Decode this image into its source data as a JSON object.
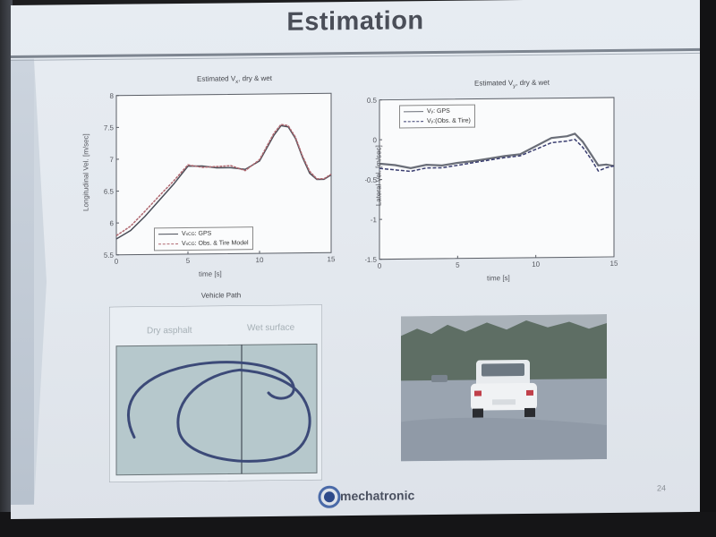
{
  "slide": {
    "title": "Estimation",
    "page_number": "24",
    "logo_text": "mechatronic"
  },
  "plot_left": {
    "title_pre": "Estimated V",
    "title_sub": "x",
    "title_post": ", dry & wet",
    "xlabel": "time [s]",
    "ylabel": "Longitudinal Vel. [m/sec]",
    "xticks": [
      "0",
      "5",
      "10",
      "15"
    ],
    "yticks": [
      "8",
      "7.5",
      "7",
      "6.5",
      "6",
      "5.5"
    ],
    "legend": [
      {
        "label_pre": "V",
        "label_sub": "xCG",
        "label_post": ": GPS",
        "color": "#4a4e58",
        "dash": "none"
      },
      {
        "label_pre": "V",
        "label_sub": "xCG",
        "label_post": ": Obs. & Tire Model",
        "color": "#b06870",
        "dash": "3,2"
      }
    ]
  },
  "plot_right": {
    "title_pre": "Estimated V",
    "title_sub": "y",
    "title_post": ", dry & wet",
    "xlabel": "time [s]",
    "ylabel": "Lateral Vel. [m/sec]",
    "xticks": [
      "0",
      "5",
      "10",
      "15"
    ],
    "yticks": [
      "0.5",
      "0",
      "-0.5",
      "-1",
      "-1.5"
    ],
    "legend": [
      {
        "label_pre": "V",
        "label_sub": "y",
        "label_post": ": GPS",
        "color": "#6a6e78",
        "dash": "none"
      },
      {
        "label_pre": "V",
        "label_sub": "y",
        "label_post": ":(Obs. & Tire)",
        "color": "#3a3e70",
        "dash": "4,2"
      }
    ]
  },
  "vehicle_path": {
    "title": "Vehicle Path",
    "regions": [
      "Dry asphalt",
      "Wet surface"
    ],
    "bg_color": "#b6c8cc",
    "path_color": "#3c4a78"
  },
  "photo": {
    "sky_color": "#aab2b9",
    "tree_color": "#5e6e64",
    "road_color": "#9aa4b0",
    "car_color": "#f0f2f4"
  },
  "chart_data": [
    {
      "type": "line",
      "title": "Estimated Vx, dry & wet",
      "xlabel": "time [s]",
      "ylabel": "Longitudinal Vel. [m/sec]",
      "xlim": [
        0,
        15
      ],
      "ylim": [
        5.5,
        8
      ],
      "grid": false,
      "legend_position": "bottom-right",
      "series": [
        {
          "name": "VxCG: GPS",
          "x": [
            0,
            1,
            2,
            3,
            4,
            5,
            6,
            7,
            8,
            9,
            10,
            11,
            11.5,
            12,
            12.5,
            13,
            13.5,
            14,
            14.5,
            15
          ],
          "y": [
            5.75,
            5.88,
            6.1,
            6.35,
            6.6,
            6.88,
            6.88,
            6.85,
            6.85,
            6.82,
            6.95,
            7.35,
            7.5,
            7.48,
            7.3,
            7.0,
            6.75,
            6.65,
            6.65,
            6.72
          ]
        },
        {
          "name": "VxCG: Obs. & Tire Model",
          "x": [
            0,
            1,
            2,
            3,
            4,
            5,
            6,
            7,
            8,
            9,
            10,
            11,
            11.5,
            12,
            12.5,
            13,
            13.5,
            14,
            14.5,
            15
          ],
          "y": [
            5.8,
            5.95,
            6.18,
            6.42,
            6.65,
            6.9,
            6.86,
            6.87,
            6.88,
            6.8,
            6.97,
            7.38,
            7.52,
            7.5,
            7.32,
            7.02,
            6.78,
            6.66,
            6.66,
            6.73
          ]
        }
      ]
    },
    {
      "type": "line",
      "title": "Estimated Vy, dry & wet",
      "xlabel": "time [s]",
      "ylabel": "Lateral Vel. [m/sec]",
      "xlim": [
        0,
        15
      ],
      "ylim": [
        -1.5,
        0.5
      ],
      "grid": false,
      "legend_position": "top-left",
      "series": [
        {
          "name": "Vy: GPS",
          "x": [
            0,
            1,
            2,
            3,
            4,
            5,
            6,
            7,
            8,
            9,
            10,
            11,
            12,
            12.5,
            13,
            13.5,
            14,
            14.5,
            15
          ],
          "y": [
            -0.3,
            -0.32,
            -0.36,
            -0.32,
            -0.33,
            -0.3,
            -0.28,
            -0.25,
            -0.22,
            -0.2,
            -0.1,
            0.0,
            0.02,
            0.05,
            -0.05,
            -0.2,
            -0.35,
            -0.34,
            -0.36
          ]
        },
        {
          "name": "Vy:(Obs. & Tire)",
          "x": [
            0,
            1,
            2,
            3,
            4,
            5,
            6,
            7,
            8,
            9,
            10,
            11,
            12,
            12.5,
            13,
            13.5,
            14,
            14.5,
            15
          ],
          "y": [
            -0.36,
            -0.38,
            -0.4,
            -0.36,
            -0.36,
            -0.33,
            -0.3,
            -0.27,
            -0.24,
            -0.22,
            -0.14,
            -0.06,
            -0.04,
            -0.02,
            -0.12,
            -0.26,
            -0.42,
            -0.38,
            -0.36
          ]
        }
      ]
    }
  ]
}
